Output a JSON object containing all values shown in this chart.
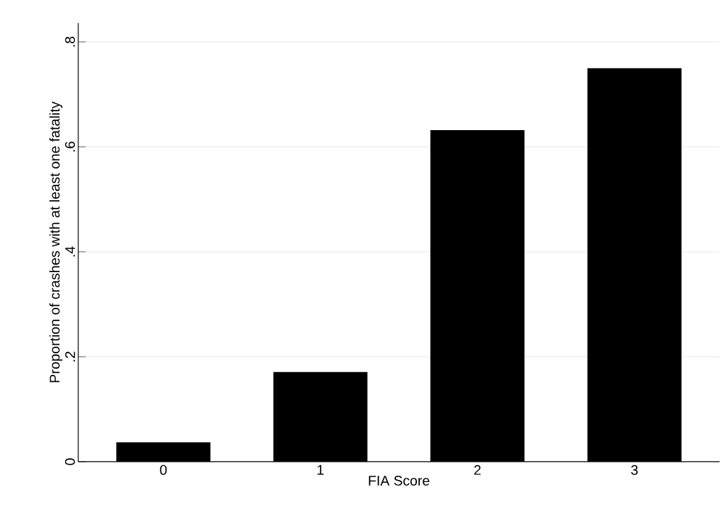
{
  "chart_data": {
    "type": "bar",
    "xlabel": "FIA Score",
    "ylabel": "Proportion of crashes with at least one fatality",
    "categories": [
      "0",
      "1",
      "2",
      "3"
    ],
    "values": [
      0.037,
      0.171,
      0.632,
      0.75
    ],
    "color": "#000000",
    "ylim": [
      0,
      0.836
    ],
    "yticks": [
      {
        "value": 0,
        "label": "0"
      },
      {
        "value": 0.2,
        "label": ".2"
      },
      {
        "value": 0.4,
        "label": ".4"
      },
      {
        "value": 0.6,
        "label": ".6"
      },
      {
        "value": 0.8,
        "label": ".8"
      }
    ],
    "grid": "y"
  }
}
